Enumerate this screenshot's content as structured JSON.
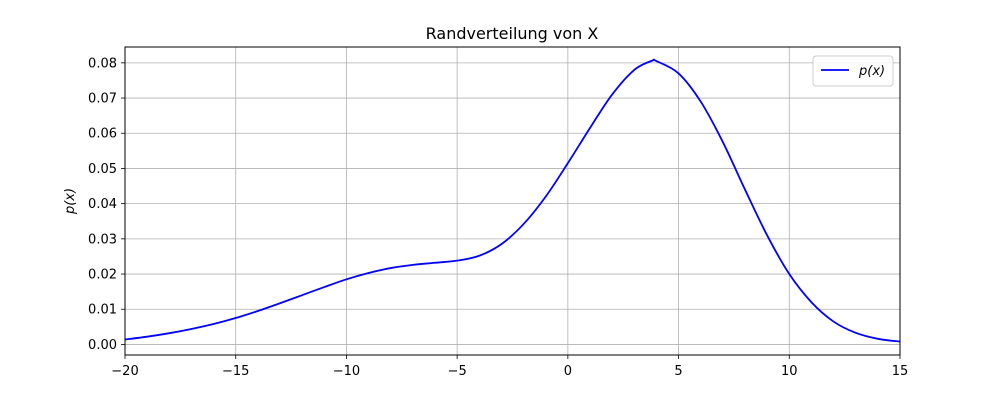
{
  "chart_data": {
    "type": "line",
    "title": "Randverteilung von X",
    "xlabel": "",
    "ylabel": "p(x)",
    "xlim": [
      -20,
      15
    ],
    "ylim": [
      -0.003,
      0.0845
    ],
    "grid": true,
    "legend_position": "top-right",
    "x_ticks": [
      -20,
      -15,
      -10,
      -5,
      0,
      5,
      10,
      15
    ],
    "x_tick_labels": [
      "−20",
      "−15",
      "−10",
      "−5",
      "0",
      "5",
      "10",
      "15"
    ],
    "y_ticks": [
      0.0,
      0.01,
      0.02,
      0.03,
      0.04,
      0.05,
      0.06,
      0.07,
      0.08
    ],
    "y_tick_labels": [
      "0.00",
      "0.01",
      "0.02",
      "0.03",
      "0.04",
      "0.05",
      "0.06",
      "0.07",
      "0.08"
    ],
    "series": [
      {
        "name": "p(x)",
        "color": "#0000ff",
        "x": [
          -20,
          -19,
          -18,
          -17,
          -16,
          -15,
          -14,
          -13,
          -12,
          -11,
          -10,
          -9,
          -8,
          -7,
          -6,
          -5,
          -4,
          -3,
          -2,
          -1,
          0,
          1,
          2,
          3,
          3.8,
          4,
          5,
          6,
          7,
          8,
          9,
          10,
          11,
          12,
          13,
          14,
          15
        ],
        "y": [
          0.0014,
          0.0022,
          0.0032,
          0.0044,
          0.0058,
          0.0075,
          0.0095,
          0.0117,
          0.014,
          0.0163,
          0.0185,
          0.0203,
          0.0217,
          0.0226,
          0.0232,
          0.0238,
          0.0252,
          0.0285,
          0.0342,
          0.042,
          0.0515,
          0.0615,
          0.071,
          0.078,
          0.0806,
          0.0805,
          0.077,
          0.069,
          0.0575,
          0.044,
          0.031,
          0.02,
          0.012,
          0.0065,
          0.0033,
          0.0016,
          0.0008
        ]
      }
    ]
  }
}
